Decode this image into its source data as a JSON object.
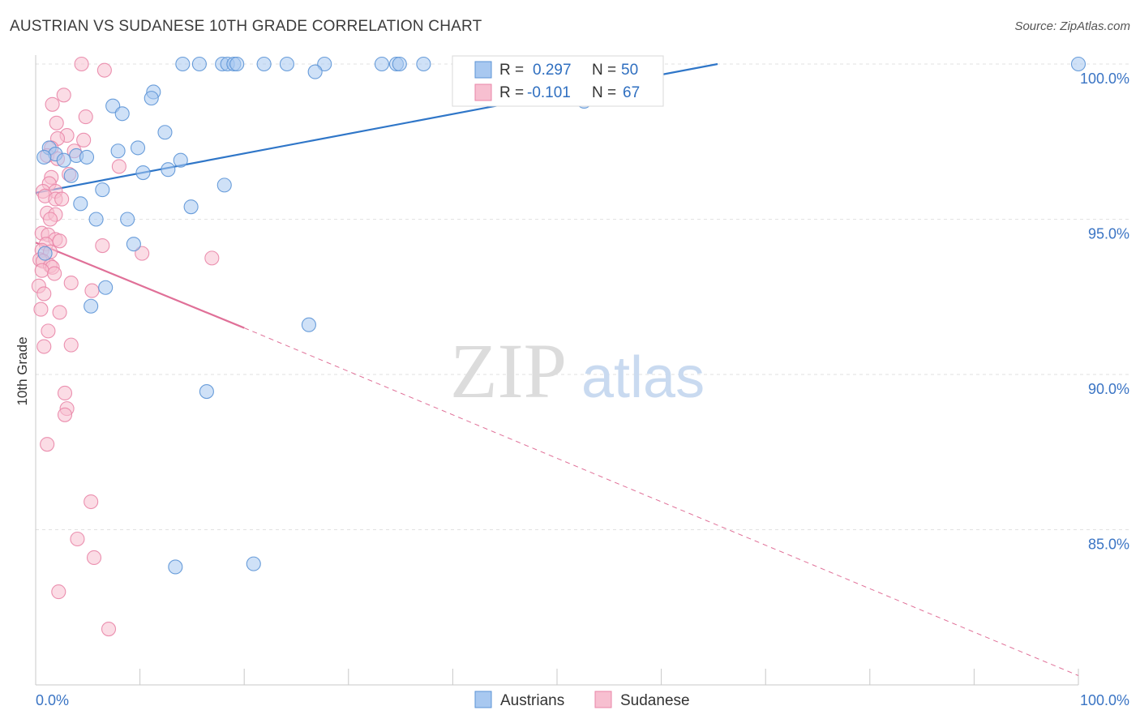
{
  "chart_data": {
    "type": "scatter",
    "title": "AUSTRIAN VS SUDANESE 10TH GRADE CORRELATION CHART",
    "source": "Source: ZipAtlas.com",
    "xlabel": "",
    "ylabel": "10th Grade",
    "xlim": [
      0,
      100
    ],
    "ylim": [
      80.2,
      100.6
    ],
    "x_tick_labels": [
      "0.0%",
      "100.0%"
    ],
    "y_ticks": [
      {
        "value": 100,
        "label": "100.0%"
      },
      {
        "value": 95,
        "label": "95.0%"
      },
      {
        "value": 90,
        "label": "90.0%"
      },
      {
        "value": 85,
        "label": "85.0%"
      }
    ],
    "watermark": {
      "part1": "ZIP",
      "part2": "atlas"
    },
    "colors": {
      "austrians_fill": "#a8c8f0",
      "austrians_stroke": "#5b93d6",
      "austrians_line": "#2f76c8",
      "sudanese_fill": "#f7bfd0",
      "sudanese_stroke": "#e985a7",
      "sudanese_line": "#e07098",
      "value_text": "#2f6fc0",
      "grid": "#e2e2e2"
    },
    "stats": [
      {
        "r_label": "R = ",
        "r_value": "0.297",
        "n_label": "N = ",
        "n_value": "50"
      },
      {
        "r_label": "R = ",
        "r_value": "-0.101",
        "n_label": "N = ",
        "n_value": "67"
      }
    ],
    "series": [
      {
        "name": "Austrians",
        "trend": {
          "x": [
            0,
            65.4
          ],
          "y": [
            95.85,
            100.0
          ],
          "dashed_to": null
        },
        "points": [
          [
            14.1,
            100
          ],
          [
            15.7,
            100
          ],
          [
            17.9,
            100
          ],
          [
            18.4,
            100
          ],
          [
            19.0,
            100
          ],
          [
            19.3,
            100
          ],
          [
            21.9,
            100
          ],
          [
            24.1,
            100
          ],
          [
            27.7,
            100
          ],
          [
            33.2,
            100
          ],
          [
            34.6,
            100
          ],
          [
            34.9,
            100
          ],
          [
            37.2,
            100
          ],
          [
            41.6,
            100
          ],
          [
            44.0,
            100
          ],
          [
            100,
            100
          ],
          [
            26.8,
            99.75
          ],
          [
            11.3,
            99.1
          ],
          [
            11.1,
            98.9
          ],
          [
            7.4,
            98.65
          ],
          [
            8.3,
            98.4
          ],
          [
            52.6,
            98.8
          ],
          [
            12.4,
            97.8
          ],
          [
            1.3,
            97.3
          ],
          [
            1.9,
            97.1
          ],
          [
            0.8,
            97.0
          ],
          [
            3.9,
            97.05
          ],
          [
            4.9,
            97.0
          ],
          [
            7.9,
            97.2
          ],
          [
            9.8,
            97.3
          ],
          [
            2.7,
            96.9
          ],
          [
            13.9,
            96.9
          ],
          [
            3.4,
            96.4
          ],
          [
            10.3,
            96.5
          ],
          [
            12.7,
            96.6
          ],
          [
            6.4,
            95.95
          ],
          [
            18.1,
            96.1
          ],
          [
            4.3,
            95.5
          ],
          [
            14.9,
            95.4
          ],
          [
            5.8,
            95.0
          ],
          [
            8.8,
            95.0
          ],
          [
            9.4,
            94.2
          ],
          [
            0.9,
            93.9
          ],
          [
            6.7,
            92.8
          ],
          [
            5.3,
            92.2
          ],
          [
            26.2,
            91.6
          ],
          [
            16.4,
            89.45
          ],
          [
            13.4,
            83.8
          ],
          [
            20.9,
            83.9
          ]
        ]
      },
      {
        "name": "Sudanese",
        "trend": {
          "x": [
            0,
            20.0
          ],
          "y": [
            94.25,
            91.5
          ],
          "dashed_to": [
            100,
            80.3
          ]
        },
        "points": [
          [
            4.4,
            100
          ],
          [
            6.6,
            99.8
          ],
          [
            2.7,
            99.0
          ],
          [
            1.6,
            98.7
          ],
          [
            4.8,
            98.3
          ],
          [
            2.0,
            98.1
          ],
          [
            3.0,
            97.7
          ],
          [
            2.1,
            97.6
          ],
          [
            4.6,
            97.55
          ],
          [
            1.5,
            97.3
          ],
          [
            3.7,
            97.2
          ],
          [
            1.1,
            97.05
          ],
          [
            2.1,
            96.95
          ],
          [
            8.0,
            96.7
          ],
          [
            3.2,
            96.45
          ],
          [
            1.5,
            96.35
          ],
          [
            1.3,
            96.15
          ],
          [
            0.7,
            95.9
          ],
          [
            1.9,
            95.9
          ],
          [
            0.9,
            95.75
          ],
          [
            1.9,
            95.65
          ],
          [
            2.5,
            95.65
          ],
          [
            1.1,
            95.2
          ],
          [
            1.9,
            95.15
          ],
          [
            1.4,
            95.0
          ],
          [
            0.6,
            94.55
          ],
          [
            1.2,
            94.5
          ],
          [
            1.9,
            94.35
          ],
          [
            2.3,
            94.3
          ],
          [
            6.4,
            94.15
          ],
          [
            1.0,
            94.2
          ],
          [
            0.6,
            94.0
          ],
          [
            1.4,
            93.95
          ],
          [
            10.2,
            93.9
          ],
          [
            16.9,
            93.75
          ],
          [
            0.4,
            93.7
          ],
          [
            0.7,
            93.65
          ],
          [
            1.4,
            93.5
          ],
          [
            1.6,
            93.45
          ],
          [
            0.6,
            93.35
          ],
          [
            1.8,
            93.25
          ],
          [
            3.4,
            92.95
          ],
          [
            0.3,
            92.85
          ],
          [
            5.4,
            92.7
          ],
          [
            0.8,
            92.6
          ],
          [
            0.5,
            92.1
          ],
          [
            2.3,
            92.0
          ],
          [
            1.2,
            91.4
          ],
          [
            3.4,
            90.95
          ],
          [
            0.8,
            90.9
          ],
          [
            2.8,
            89.4
          ],
          [
            3.0,
            88.9
          ],
          [
            2.8,
            88.7
          ],
          [
            1.1,
            87.75
          ],
          [
            5.3,
            85.9
          ],
          [
            4.0,
            84.7
          ],
          [
            5.6,
            84.1
          ],
          [
            2.2,
            83.0
          ],
          [
            7.0,
            81.8
          ]
        ]
      }
    ],
    "legend": [
      "Austrians",
      "Sudanese"
    ]
  }
}
